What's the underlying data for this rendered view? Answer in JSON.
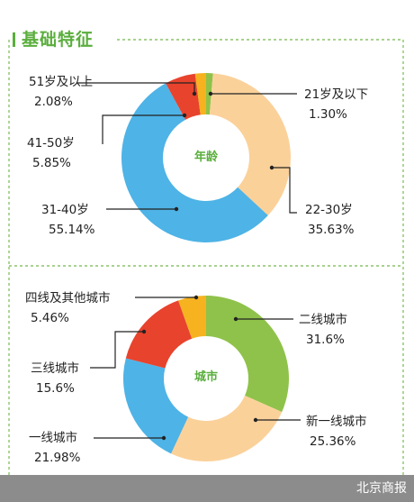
{
  "section_title": "基础特征",
  "footer": {
    "source": "北京商报"
  },
  "chart_data": [
    {
      "type": "pie",
      "center_label": "年龄",
      "categories": [
        "21岁及以下",
        "22-30岁",
        "31-40岁",
        "41-50岁",
        "51岁及以上"
      ],
      "values": [
        1.3,
        35.63,
        55.14,
        5.85,
        2.08
      ],
      "value_labels": [
        "1.30%",
        "35.63%",
        "55.14%",
        "5.85%",
        "2.08%"
      ],
      "colors": [
        "#8fc24a",
        "#fbd19a",
        "#4eb3e6",
        "#e8432d",
        "#f6b21f"
      ]
    },
    {
      "type": "pie",
      "center_label": "城市",
      "categories": [
        "二线城市",
        "新一线城市",
        "一线城市",
        "三线城市",
        "四线及其他城市"
      ],
      "values": [
        31.6,
        25.36,
        21.98,
        15.6,
        5.46
      ],
      "value_labels": [
        "31.6%",
        "25.36%",
        "21.98%",
        "15.6%",
        "5.46%"
      ],
      "colors": [
        "#8fc24a",
        "#fbd19a",
        "#4eb3e6",
        "#e8432d",
        "#f6b21f"
      ]
    }
  ]
}
